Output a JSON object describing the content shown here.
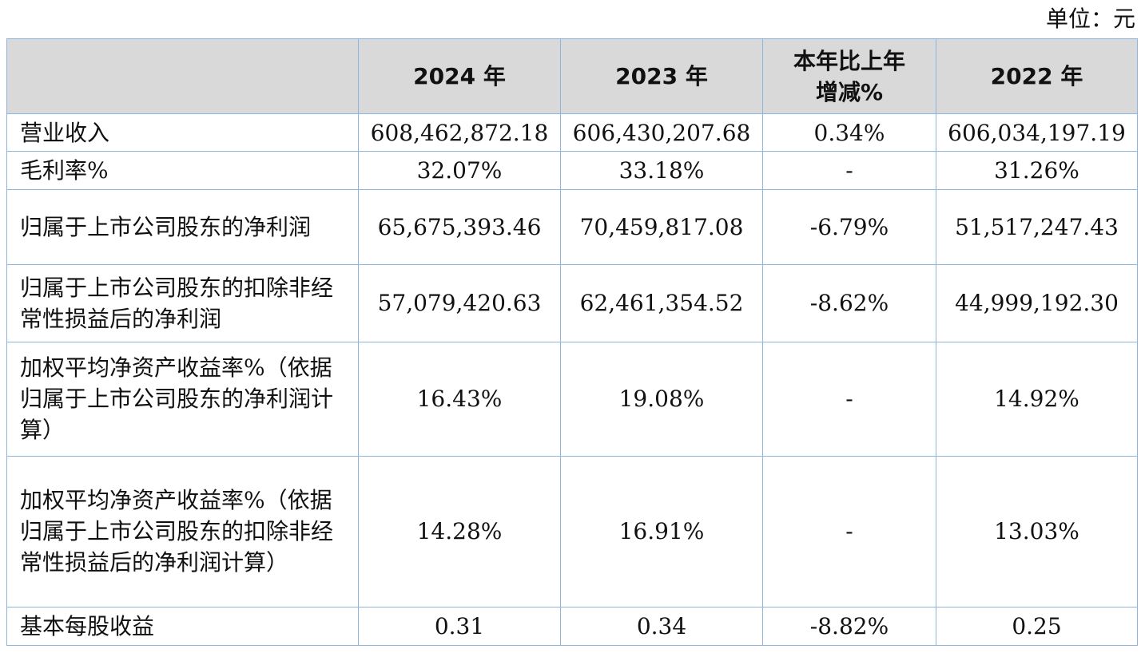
{
  "unit_label": "单位：元",
  "table": {
    "headers": [
      "",
      "2024 年",
      "2023 年",
      "本年比上年增减%",
      "2022 年"
    ],
    "rows": [
      {
        "label": "营业收入",
        "y2024": "608,462,872.18",
        "y2023": "606,430,207.68",
        "change": "0.34%",
        "y2022": "606,034,197.19"
      },
      {
        "label": "毛利率%",
        "y2024": "32.07%",
        "y2023": "33.18%",
        "change": "-",
        "y2022": "31.26%"
      },
      {
        "label": "归属于上市公司股东的净利润",
        "y2024": "65,675,393.46",
        "y2023": "70,459,817.08",
        "change": "-6.79%",
        "y2022": "51,517,247.43"
      },
      {
        "label": "归属于上市公司股东的扣除非经常性损益后的净利润",
        "y2024": "57,079,420.63",
        "y2023": "62,461,354.52",
        "change": "-8.62%",
        "y2022": "44,999,192.30"
      },
      {
        "label": "加权平均净资产收益率%（依据归属于上市公司股东的净利润计算）",
        "y2024": "16.43%",
        "y2023": "19.08%",
        "change": "-",
        "y2022": "14.92%"
      },
      {
        "label": "加权平均净资产收益率%（依据归属于上市公司股东的扣除非经常性损益后的净利润计算）",
        "y2024": "14.28%",
        "y2023": "16.91%",
        "change": "-",
        "y2022": "13.03%"
      },
      {
        "label": "基本每股收益",
        "y2024": "0.31",
        "y2023": "0.34",
        "change": "-8.82%",
        "y2022": "0.25"
      }
    ]
  }
}
